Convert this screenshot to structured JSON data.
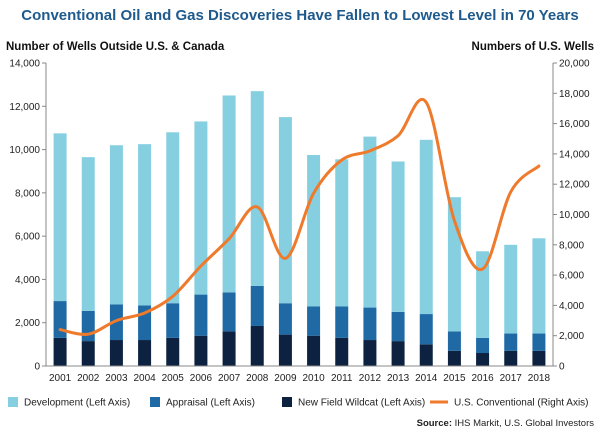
{
  "chart_data": {
    "type": "bar",
    "title": "Conventional Oil and Gas Discoveries Have Fallen to Lowest Level in 70 Years",
    "ylabel_left": "Number of Wells Outside U.S. & Canada",
    "ylabel_right": "Numbers of U.S. Wells",
    "categories": [
      "2001",
      "2002",
      "2003",
      "2004",
      "2005",
      "2006",
      "2007",
      "2008",
      "2009",
      "2010",
      "2011",
      "2012",
      "2013",
      "2014",
      "2015",
      "2016",
      "2017",
      "2018"
    ],
    "stacked": true,
    "ylim_left": [
      0,
      14000
    ],
    "yticks_left": [
      "0",
      "2,000",
      "4,000",
      "6,000",
      "8,000",
      "10,000",
      "12,000",
      "14,000"
    ],
    "ylim_right": [
      0,
      20000
    ],
    "yticks_right": [
      "0",
      "2,000",
      "4,000",
      "6,000",
      "8,000",
      "10,000",
      "12,000",
      "14,000",
      "16,000",
      "18,000",
      "20,000"
    ],
    "series": [
      {
        "name": "New Field Wildcat (Left Axis)",
        "axis": "left",
        "color": "#0d2240",
        "values": [
          1300,
          1150,
          1200,
          1200,
          1300,
          1400,
          1600,
          1850,
          1450,
          1400,
          1300,
          1200,
          1150,
          1000,
          700,
          600,
          700,
          700
        ]
      },
      {
        "name": "Appraisal (Left Axis)",
        "axis": "left",
        "color": "#1f6aa5",
        "values": [
          1700,
          1400,
          1650,
          1600,
          1600,
          1900,
          1800,
          1850,
          1450,
          1350,
          1450,
          1500,
          1350,
          1400,
          900,
          700,
          800,
          800
        ]
      },
      {
        "name": "Development (Left Axis)",
        "axis": "left",
        "color": "#86cfe1",
        "values": [
          7750,
          7100,
          7350,
          7450,
          7900,
          8000,
          9100,
          9000,
          8600,
          7000,
          6800,
          7900,
          6950,
          8050,
          6200,
          4000,
          4100,
          4400
        ]
      },
      {
        "name": "U.S. Conventional (Right Axis)",
        "axis": "right",
        "type": "line",
        "color": "#ef7a2c",
        "values": [
          2400,
          2100,
          3000,
          3500,
          4600,
          6600,
          8400,
          10500,
          7100,
          11400,
          13600,
          14200,
          15200,
          17400,
          9600,
          6400,
          11500,
          13200
        ]
      }
    ],
    "legend": "bottom",
    "grid": false
  },
  "source": {
    "label": "Source:",
    "text": " IHS Markit, U.S. Global Investors"
  }
}
